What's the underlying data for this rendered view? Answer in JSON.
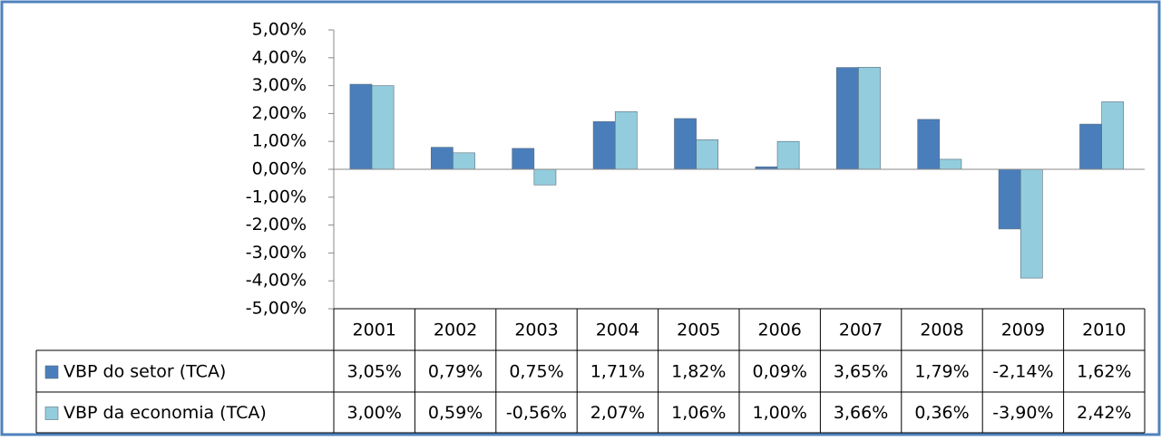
{
  "chart_data": {
    "type": "bar",
    "categories": [
      "2001",
      "2002",
      "2003",
      "2004",
      "2005",
      "2006",
      "2007",
      "2008",
      "2009",
      "2010"
    ],
    "series": [
      {
        "name": "VBP do setor (TCA)",
        "color": "#4a7ebb",
        "values": [
          3.05,
          0.79,
          0.75,
          1.71,
          1.82,
          0.09,
          3.65,
          1.79,
          -2.14,
          1.62
        ],
        "value_labels": [
          "3,05%",
          "0,79%",
          "0,75%",
          "1,71%",
          "1,82%",
          "0,09%",
          "3,65%",
          "1,79%",
          "-2,14%",
          "1,62%"
        ]
      },
      {
        "name": "VBP da economia (TCA)",
        "color": "#93cddd",
        "values": [
          3.0,
          0.59,
          -0.56,
          2.07,
          1.06,
          1.0,
          3.66,
          0.36,
          -3.9,
          2.42
        ],
        "value_labels": [
          "3,00%",
          "0,59%",
          "-0,56%",
          "2,07%",
          "1,06%",
          "1,00%",
          "3,66%",
          "0,36%",
          "-3,90%",
          "2,42%"
        ]
      }
    ],
    "ylim": [
      -5,
      5
    ],
    "yticks": [
      {
        "value": 5,
        "label": "5,00%"
      },
      {
        "value": 4,
        "label": "4,00%"
      },
      {
        "value": 3,
        "label": "3,00%"
      },
      {
        "value": 2,
        "label": "2,00%"
      },
      {
        "value": 1,
        "label": "1,00%"
      },
      {
        "value": 0,
        "label": "0,00%"
      },
      {
        "value": -1,
        "label": "-1,00%"
      },
      {
        "value": -2,
        "label": "-2,00%"
      },
      {
        "value": -3,
        "label": "-3,00%"
      },
      {
        "value": -4,
        "label": "-4,00%"
      },
      {
        "value": -5,
        "label": "-5,00%"
      }
    ],
    "data_table": true
  }
}
